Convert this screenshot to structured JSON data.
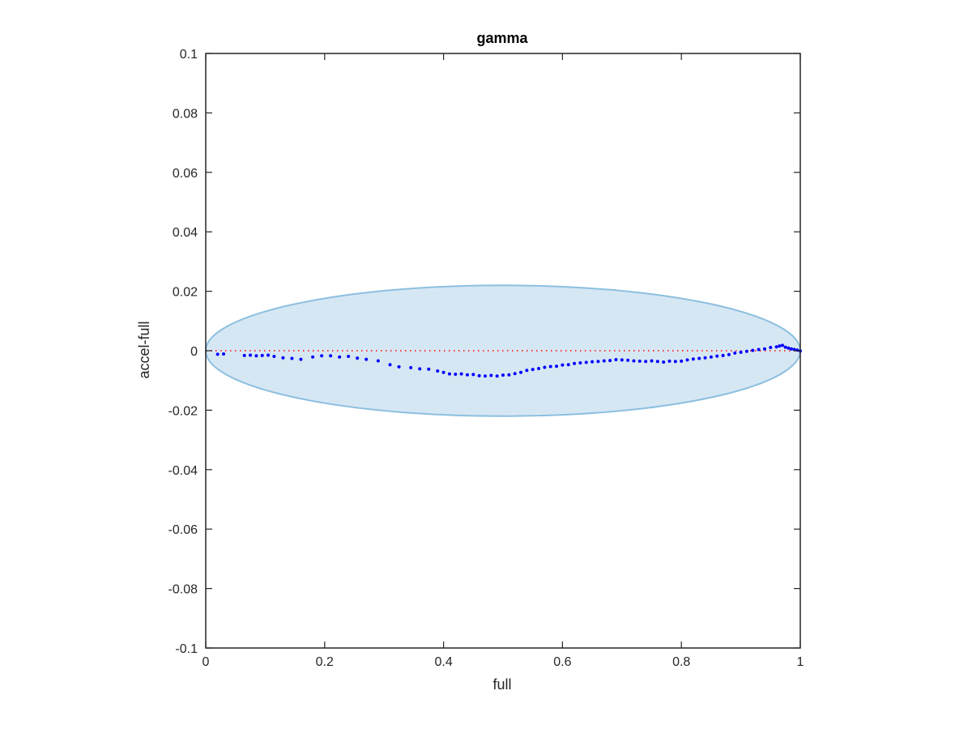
{
  "chart_data": {
    "type": "scatter",
    "title": "gamma",
    "xlabel": "full",
    "ylabel": "accel-full",
    "xlim": [
      0,
      1
    ],
    "ylim": [
      -0.1,
      0.1
    ],
    "xticks": [
      0,
      0.2,
      0.4,
      0.6,
      0.8,
      1
    ],
    "xtick_labels": [
      "0",
      "0.2",
      "0.4",
      "0.6",
      "0.8",
      "1"
    ],
    "yticks": [
      0.1,
      0.08,
      0.06,
      0.04,
      0.02,
      0,
      -0.02,
      -0.04,
      -0.06,
      -0.08,
      -0.1
    ],
    "ytick_labels": [
      "0.1",
      "0.08",
      "0.06",
      "0.04",
      "0.02",
      "0",
      "-0.02",
      "-0.04",
      "-0.06",
      "-0.08",
      "-0.1"
    ],
    "grid": false,
    "reference_line": {
      "y": 0,
      "style": "dotted",
      "color": "#ff0000"
    },
    "ellipse": {
      "cx": 0.5,
      "cy": 0,
      "rx": 0.5,
      "ry": 0.022,
      "fill": "#d6e7f4",
      "stroke": "#8cbfe0"
    },
    "point_color": "#0000ff",
    "points": [
      [
        0.02,
        -0.0012
      ],
      [
        0.03,
        -0.0011
      ],
      [
        0.065,
        -0.0016
      ],
      [
        0.075,
        -0.0015
      ],
      [
        0.085,
        -0.0017
      ],
      [
        0.095,
        -0.0016
      ],
      [
        0.105,
        -0.0015
      ],
      [
        0.115,
        -0.0019
      ],
      [
        0.13,
        -0.0024
      ],
      [
        0.145,
        -0.0026
      ],
      [
        0.16,
        -0.0029
      ],
      [
        0.18,
        -0.0021
      ],
      [
        0.195,
        -0.0017
      ],
      [
        0.21,
        -0.0017
      ],
      [
        0.225,
        -0.0021
      ],
      [
        0.24,
        -0.0019
      ],
      [
        0.255,
        -0.0025
      ],
      [
        0.27,
        -0.0029
      ],
      [
        0.29,
        -0.0034
      ],
      [
        0.31,
        -0.0047
      ],
      [
        0.325,
        -0.0054
      ],
      [
        0.345,
        -0.0057
      ],
      [
        0.36,
        -0.0061
      ],
      [
        0.375,
        -0.0062
      ],
      [
        0.39,
        -0.0068
      ],
      [
        0.4,
        -0.0073
      ],
      [
        0.41,
        -0.0078
      ],
      [
        0.42,
        -0.0079
      ],
      [
        0.43,
        -0.0078
      ],
      [
        0.44,
        -0.0081
      ],
      [
        0.45,
        -0.008
      ],
      [
        0.46,
        -0.0084
      ],
      [
        0.47,
        -0.0085
      ],
      [
        0.48,
        -0.0083
      ],
      [
        0.49,
        -0.0085
      ],
      [
        0.5,
        -0.0082
      ],
      [
        0.51,
        -0.0081
      ],
      [
        0.52,
        -0.0077
      ],
      [
        0.53,
        -0.0073
      ],
      [
        0.54,
        -0.0066
      ],
      [
        0.55,
        -0.0063
      ],
      [
        0.56,
        -0.006
      ],
      [
        0.57,
        -0.0056
      ],
      [
        0.58,
        -0.0053
      ],
      [
        0.59,
        -0.0052
      ],
      [
        0.6,
        -0.0048
      ],
      [
        0.61,
        -0.0047
      ],
      [
        0.62,
        -0.0043
      ],
      [
        0.63,
        -0.0041
      ],
      [
        0.64,
        -0.0039
      ],
      [
        0.65,
        -0.0037
      ],
      [
        0.66,
        -0.0036
      ],
      [
        0.67,
        -0.0034
      ],
      [
        0.68,
        -0.0033
      ],
      [
        0.69,
        -0.003
      ],
      [
        0.7,
        -0.0031
      ],
      [
        0.71,
        -0.0032
      ],
      [
        0.72,
        -0.0034
      ],
      [
        0.73,
        -0.0035
      ],
      [
        0.74,
        -0.0036
      ],
      [
        0.75,
        -0.0034
      ],
      [
        0.76,
        -0.0036
      ],
      [
        0.77,
        -0.0038
      ],
      [
        0.78,
        -0.0035
      ],
      [
        0.79,
        -0.0036
      ],
      [
        0.8,
        -0.0035
      ],
      [
        0.81,
        -0.0031
      ],
      [
        0.82,
        -0.0028
      ],
      [
        0.83,
        -0.0026
      ],
      [
        0.84,
        -0.0024
      ],
      [
        0.85,
        -0.0021
      ],
      [
        0.86,
        -0.0018
      ],
      [
        0.87,
        -0.0016
      ],
      [
        0.88,
        -0.0013
      ],
      [
        0.89,
        -0.0008
      ],
      [
        0.9,
        -0.0005
      ],
      [
        0.91,
        -0.0002
      ],
      [
        0.92,
        0.0001
      ],
      [
        0.93,
        0.0004
      ],
      [
        0.94,
        0.0006
      ],
      [
        0.95,
        0.0011
      ],
      [
        0.96,
        0.0013
      ],
      [
        0.965,
        0.0016
      ],
      [
        0.97,
        0.0018
      ],
      [
        0.975,
        0.0012
      ],
      [
        0.98,
        0.0009
      ],
      [
        0.985,
        0.0006
      ],
      [
        0.99,
        0.0004
      ],
      [
        0.995,
        0.0002
      ],
      [
        1.0,
        -0.0001
      ]
    ]
  }
}
